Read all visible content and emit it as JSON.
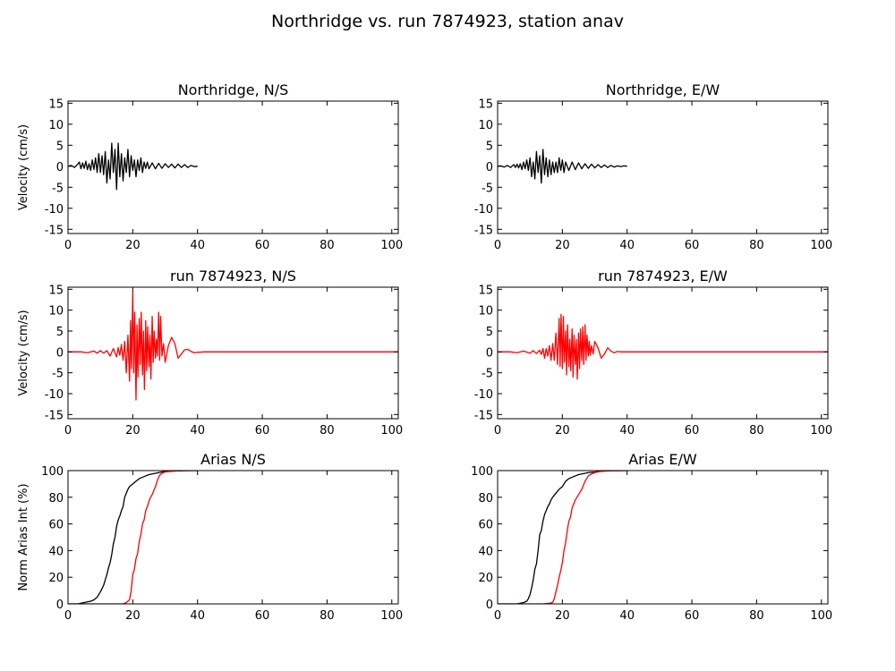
{
  "title": "Northridge vs. run 7874923, station anav",
  "colors": {
    "recorded": "#000000",
    "simulated": "#ff0000",
    "axes": "#000000",
    "background": "#ffffff"
  },
  "chart_data": [
    {
      "id": "p1",
      "type": "line",
      "title": "Northridge, N/S",
      "ylabel": "Velocity (cm/s)",
      "xlim": [
        0,
        102
      ],
      "ylim": [
        -16,
        15.5
      ],
      "xticks": [
        "0",
        "20",
        "40",
        "60",
        "80",
        "100"
      ],
      "yticks": [
        "15",
        "10",
        "5",
        "0",
        "-5",
        "-10",
        "-15"
      ],
      "series": [
        {
          "color": "#000000",
          "x": [
            0,
            1,
            2,
            3,
            3.5,
            4,
            4.5,
            5,
            5.5,
            6,
            6.5,
            7,
            7.5,
            8,
            8.5,
            9,
            9.5,
            10,
            10.5,
            11,
            11.5,
            12,
            12.5,
            13,
            13.5,
            14,
            14.5,
            15,
            15.5,
            16,
            16.5,
            17,
            17.5,
            18,
            18.5,
            19,
            19.5,
            20,
            20.5,
            21,
            21.5,
            22,
            22.5,
            23,
            23.5,
            24,
            24.5,
            25,
            26,
            27,
            28,
            29,
            30,
            31,
            32,
            33,
            34,
            35,
            36,
            37,
            38,
            39,
            40
          ],
          "y": [
            0,
            0.2,
            -0.3,
            0.5,
            1.0,
            -0.6,
            0.8,
            -0.5,
            1.2,
            -0.8,
            0.6,
            -1.0,
            1.5,
            -0.8,
            2.0,
            -1.5,
            3.0,
            -1.5,
            2.5,
            -2.0,
            3.5,
            -4.0,
            1.5,
            -3.0,
            5.5,
            -1.5,
            4.0,
            -5.5,
            5.5,
            -2.5,
            3.0,
            -3.5,
            2.0,
            -1.5,
            4.0,
            -2.5,
            2.5,
            -1.0,
            1.5,
            -2.5,
            1.5,
            -1.0,
            2.0,
            -1.5,
            1.0,
            -0.5,
            1.0,
            -0.6,
            0.8,
            -0.6,
            0.7,
            -0.5,
            0.6,
            -0.3,
            0.5,
            -0.4,
            0.5,
            -0.3,
            0.4,
            -0.3,
            0.2,
            -0.1,
            0
          ]
        }
      ]
    },
    {
      "id": "p2",
      "type": "line",
      "title": "Northridge, E/W",
      "ylabel": "",
      "xlim": [
        0,
        102
      ],
      "ylim": [
        -16,
        15.5
      ],
      "xticks": [
        "0",
        "20",
        "40",
        "60",
        "80",
        "100"
      ],
      "yticks": [
        "15",
        "10",
        "5",
        "0",
        "-5",
        "-10",
        "-15"
      ],
      "series": [
        {
          "color": "#000000",
          "x": [
            0,
            1,
            2,
            3,
            4,
            5,
            5.5,
            6,
            6.5,
            7,
            7.5,
            8,
            8.5,
            9,
            9.5,
            10,
            10.5,
            11,
            11.5,
            12,
            12.5,
            13,
            13.5,
            14,
            14.5,
            15,
            15.5,
            16,
            16.5,
            17,
            17.5,
            18,
            18.5,
            19,
            19.5,
            20,
            20.5,
            21,
            22,
            23,
            24,
            25,
            26,
            27,
            28,
            29,
            30,
            31,
            32,
            33,
            34,
            35,
            36,
            37,
            38,
            39,
            40
          ],
          "y": [
            0,
            0.1,
            -0.2,
            0.2,
            -0.3,
            0.4,
            -0.3,
            0.5,
            -0.4,
            0.6,
            -0.8,
            1.0,
            -0.6,
            1.5,
            -1.0,
            2.0,
            -2.5,
            1.0,
            -3.0,
            3.5,
            -1.5,
            2.5,
            -4.0,
            4.0,
            -2.0,
            2.0,
            -2.5,
            1.5,
            -2.0,
            1.0,
            -1.5,
            1.0,
            -1.5,
            2.0,
            -1.0,
            1.5,
            -1.5,
            1.0,
            -1.0,
            1.0,
            -0.8,
            0.8,
            -0.6,
            0.6,
            -0.5,
            0.5,
            -0.4,
            0.4,
            -0.3,
            0.3,
            -0.3,
            0.2,
            -0.2,
            0.1,
            -0.1,
            0.1,
            0
          ]
        }
      ]
    },
    {
      "id": "p3",
      "type": "line",
      "title": "run 7874923, N/S",
      "ylabel": "Velocity (cm/s)",
      "xlim": [
        0,
        102
      ],
      "ylim": [
        -16,
        15.5
      ],
      "xticks": [
        "0",
        "20",
        "40",
        "60",
        "80",
        "100"
      ],
      "yticks": [
        "15",
        "10",
        "5",
        "0",
        "-5",
        "-10",
        "-15"
      ],
      "series": [
        {
          "color": "#ff0000",
          "x": [
            0,
            4,
            6,
            8,
            9,
            10,
            11,
            12,
            13,
            14,
            15,
            15.5,
            16,
            16.5,
            17,
            17.5,
            18,
            18.5,
            19,
            19.3,
            19.6,
            20,
            20.3,
            20.6,
            21,
            21.3,
            21.6,
            22,
            22.3,
            22.6,
            23,
            23.3,
            23.6,
            24,
            24.3,
            24.6,
            25,
            25.3,
            25.6,
            26,
            26.3,
            26.6,
            27,
            27.3,
            27.6,
            28,
            28.3,
            28.6,
            29,
            29.5,
            30,
            31,
            32,
            33,
            34,
            35,
            36,
            37,
            38,
            39,
            40,
            42,
            45,
            50,
            60,
            70,
            80,
            90,
            100,
            102
          ],
          "y": [
            0,
            0,
            -0.2,
            0.2,
            -0.3,
            0.3,
            -0.3,
            0.3,
            -1.0,
            0.8,
            -1.2,
            1.0,
            -0.8,
            1.8,
            -2.0,
            2.5,
            -5.0,
            4.0,
            -7.0,
            7.5,
            -4.0,
            14.5,
            -5.0,
            9.5,
            -11.5,
            6.5,
            -6.0,
            8.0,
            -3.0,
            9.5,
            -5.5,
            5.0,
            -9.0,
            7.5,
            -4.5,
            6.0,
            -3.5,
            4.0,
            -6.5,
            8.5,
            -2.5,
            5.0,
            -1.5,
            3.0,
            -1.0,
            9.5,
            -2.0,
            8.5,
            -1.0,
            2.0,
            -2.5,
            1.5,
            3.5,
            2.0,
            -1.5,
            -0.5,
            0.5,
            0.6,
            0.1,
            -0.2,
            -0.1,
            0,
            0,
            0,
            0,
            0,
            0,
            0,
            0,
            0
          ]
        }
      ]
    },
    {
      "id": "p4",
      "type": "line",
      "title": "run 7874923, E/W",
      "ylabel": "",
      "xlim": [
        0,
        102
      ],
      "ylim": [
        -16,
        15.5
      ],
      "xticks": [
        "0",
        "20",
        "40",
        "60",
        "80",
        "100"
      ],
      "yticks": [
        "15",
        "10",
        "5",
        "0",
        "-5",
        "-10",
        "-15"
      ],
      "series": [
        {
          "color": "#ff0000",
          "x": [
            0,
            4,
            6,
            8,
            10,
            11,
            12,
            13,
            13.5,
            14,
            14.5,
            15,
            15.5,
            16,
            16.5,
            17,
            17.5,
            18,
            18.5,
            19,
            19.3,
            19.6,
            20,
            20.3,
            20.6,
            21,
            21.3,
            21.6,
            22,
            22.3,
            22.6,
            23,
            23.3,
            23.6,
            24,
            24.3,
            24.6,
            25,
            25.3,
            25.6,
            26,
            26.3,
            26.6,
            27,
            27.3,
            27.6,
            28,
            28.3,
            28.6,
            29,
            29.5,
            30,
            31,
            32,
            33,
            34,
            35,
            36,
            37,
            38,
            39,
            40,
            42,
            45,
            50,
            60,
            70,
            80,
            90,
            100,
            102
          ],
          "y": [
            0,
            0,
            -0.2,
            0.2,
            -0.3,
            0.3,
            -0.4,
            0.4,
            -0.6,
            0.8,
            -1.5,
            0.8,
            -1.0,
            1.5,
            -2.0,
            2.0,
            -2.0,
            4.5,
            -3.0,
            8.0,
            -3.5,
            9.0,
            -4.0,
            8.5,
            -2.5,
            5.0,
            -5.5,
            6.5,
            -3.5,
            3.0,
            -4.5,
            5.5,
            -6.0,
            4.0,
            -3.0,
            3.0,
            -6.5,
            4.5,
            -4.0,
            5.5,
            -2.0,
            6.0,
            -3.0,
            6.5,
            -2.0,
            4.0,
            -1.0,
            2.5,
            -0.8,
            1.5,
            -0.5,
            2.5,
            1.0,
            -1.5,
            -0.5,
            1.0,
            0.2,
            -0.2,
            0.1,
            0,
            0,
            0,
            0,
            0,
            0,
            0,
            0,
            0,
            0,
            0,
            0
          ]
        }
      ]
    },
    {
      "id": "p5",
      "type": "line",
      "title": "Arias N/S",
      "ylabel": "Norm Arias Int (%)",
      "xlim": [
        0,
        102
      ],
      "ylim": [
        0,
        100
      ],
      "xticks": [
        "0",
        "20",
        "40",
        "60",
        "80",
        "100"
      ],
      "yticks": [
        "100",
        "80",
        "60",
        "40",
        "20",
        "0"
      ],
      "series": [
        {
          "color": "#000000",
          "x": [
            0,
            3,
            4,
            5,
            6,
            7,
            8,
            9,
            10,
            11,
            12,
            12.5,
            13,
            13.5,
            14,
            14.5,
            15,
            15.5,
            16,
            16.5,
            17,
            17.5,
            18,
            18.5,
            19,
            19.5,
            20,
            21,
            22,
            23,
            24,
            25,
            26,
            27,
            28,
            29,
            30,
            32,
            34,
            36,
            38,
            40
          ],
          "y": [
            0,
            0,
            0.5,
            1,
            1.5,
            2,
            3,
            5,
            9,
            14,
            22,
            27,
            31,
            37,
            45,
            50,
            58,
            63,
            66,
            70,
            73,
            80,
            83,
            86,
            88,
            89,
            90,
            92,
            94,
            95,
            96,
            97,
            97.5,
            98,
            98.5,
            99,
            99.3,
            99.6,
            99.8,
            99.9,
            100,
            100
          ]
        },
        {
          "color": "#ff0000",
          "x": [
            0,
            17,
            18,
            19,
            19.5,
            20,
            20.5,
            21,
            21.5,
            22,
            22.5,
            23,
            23.5,
            24,
            24.5,
            25,
            25.5,
            26,
            26.5,
            27,
            27.5,
            28,
            28.5,
            29,
            30,
            32,
            35,
            40
          ],
          "y": [
            0,
            0,
            1,
            3,
            10,
            22,
            26,
            34,
            38,
            47,
            52,
            60,
            63,
            70,
            73,
            77,
            80,
            82,
            85,
            88,
            92,
            95,
            97,
            98,
            99,
            99.5,
            100,
            100
          ]
        }
      ]
    },
    {
      "id": "p6",
      "type": "line",
      "title": "Arias E/W",
      "ylabel": "",
      "xlim": [
        0,
        102
      ],
      "ylim": [
        0,
        100
      ],
      "xticks": [
        "0",
        "20",
        "40",
        "60",
        "80",
        "100"
      ],
      "yticks": [
        "100",
        "80",
        "60",
        "40",
        "20",
        "0"
      ],
      "series": [
        {
          "color": "#000000",
          "x": [
            0,
            6,
            7,
            8,
            9,
            9.5,
            10,
            10.5,
            11,
            11.5,
            12,
            12.5,
            13,
            13.5,
            14,
            14.5,
            15,
            15.5,
            16,
            16.5,
            17,
            18,
            19,
            20,
            21,
            22,
            23,
            24,
            25,
            26,
            28,
            30,
            32,
            35,
            40
          ],
          "y": [
            0,
            0,
            0.5,
            1,
            2,
            4,
            7,
            12,
            18,
            26,
            30,
            40,
            52,
            55,
            62,
            67,
            70,
            73,
            75,
            78,
            80,
            83,
            86,
            88,
            92,
            94,
            95,
            96,
            97,
            97.5,
            98.5,
            99,
            99.5,
            99.9,
            100
          ]
        },
        {
          "color": "#ff0000",
          "x": [
            0,
            14,
            16,
            17,
            17.5,
            18,
            18.5,
            19,
            19.5,
            20,
            20.5,
            21,
            21.5,
            22,
            22.5,
            23,
            23.5,
            24,
            24.5,
            25,
            25.5,
            26,
            26.5,
            27,
            27.5,
            28,
            29,
            30,
            32,
            35,
            40
          ],
          "y": [
            0,
            0,
            0.5,
            1,
            4,
            9,
            14,
            20,
            25,
            31,
            40,
            46,
            55,
            62,
            65,
            72,
            75,
            78,
            80,
            82,
            84,
            86,
            89,
            92,
            94,
            96,
            97.5,
            98.5,
            99.5,
            99.9,
            100
          ]
        }
      ]
    }
  ]
}
